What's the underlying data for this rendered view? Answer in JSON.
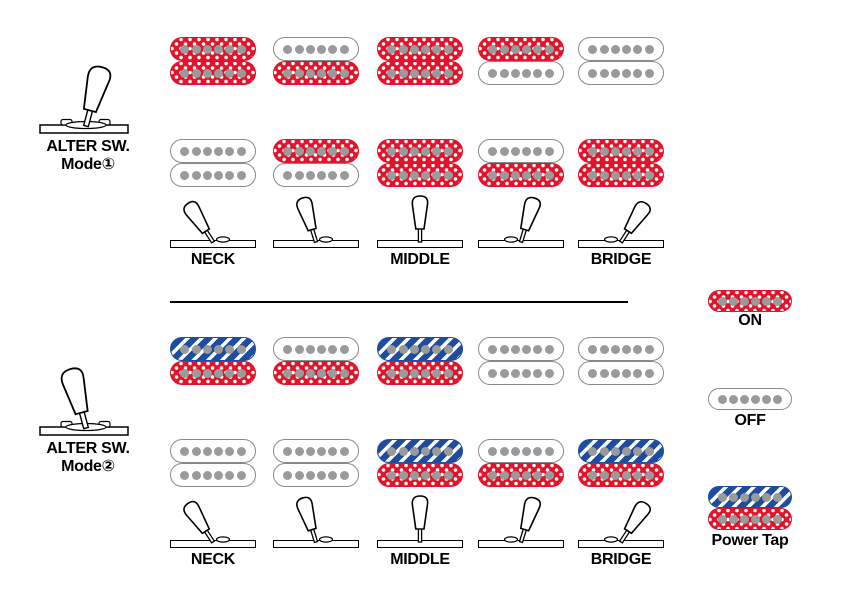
{
  "colors": {
    "on": "#e2142b",
    "tap": "#1e4c9e",
    "pole": "#9a9a9a"
  },
  "sections": [
    {
      "id": "mode1",
      "switch_title": "ALTER SW.",
      "switch_mode": "Mode①",
      "icon_tilt": 15,
      "rows": [
        {
          "name": "neck-pickup-row",
          "states": [
            [
              "on",
              "on"
            ],
            [
              "off",
              "on"
            ],
            [
              "on",
              "on"
            ],
            [
              "on",
              "off"
            ],
            [
              "off",
              "off"
            ]
          ]
        },
        {
          "name": "bridge-pickup-row",
          "states": [
            [
              "off",
              "off"
            ],
            [
              "on",
              "off"
            ],
            [
              "on",
              "on"
            ],
            [
              "off",
              "on"
            ],
            [
              "on",
              "on"
            ]
          ]
        }
      ],
      "lever_angles": [
        -33,
        -17,
        0,
        17,
        33
      ],
      "position_labels": [
        {
          "label": "NECK",
          "col": 0
        },
        {
          "label": "MIDDLE",
          "col": 2
        },
        {
          "label": "BRIDGE",
          "col": 4
        }
      ]
    },
    {
      "id": "mode2",
      "switch_title": "ALTER SW.",
      "switch_mode": "Mode②",
      "icon_tilt": -15,
      "rows": [
        {
          "name": "neck-pickup-row",
          "states": [
            [
              "tap",
              "on"
            ],
            [
              "off",
              "on"
            ],
            [
              "tap",
              "on"
            ],
            [
              "off",
              "off"
            ],
            [
              "off",
              "off"
            ]
          ]
        },
        {
          "name": "bridge-pickup-row",
          "states": [
            [
              "off",
              "off"
            ],
            [
              "off",
              "off"
            ],
            [
              "tap",
              "on"
            ],
            [
              "off",
              "on"
            ],
            [
              "tap",
              "on"
            ]
          ]
        }
      ],
      "lever_angles": [
        -33,
        -17,
        0,
        17,
        33
      ],
      "position_labels": [
        {
          "label": "NECK",
          "col": 0
        },
        {
          "label": "MIDDLE",
          "col": 2
        },
        {
          "label": "BRIDGE",
          "col": 4
        }
      ]
    }
  ],
  "legend": [
    {
      "name": "on",
      "label": "ON",
      "coils": [
        "on"
      ]
    },
    {
      "name": "off",
      "label": "OFF",
      "coils": [
        "off"
      ]
    },
    {
      "name": "power-tap",
      "label": "Power Tap",
      "coils": [
        "tap",
        "on"
      ]
    }
  ]
}
